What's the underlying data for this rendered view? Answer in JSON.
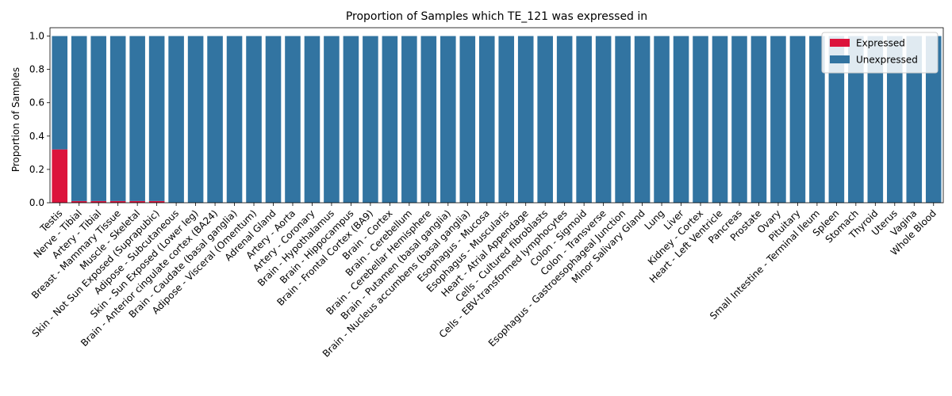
{
  "chart_data": {
    "type": "bar",
    "stacked": true,
    "title": "Proportion of Samples which TE_121 was expressed in",
    "xlabel": "",
    "ylabel": "Proportion of Samples",
    "ylim": [
      0,
      1.05
    ],
    "yticks": [
      "0.0",
      "0.2",
      "0.4",
      "0.6",
      "0.8",
      "1.0"
    ],
    "grid": false,
    "legend_position": "top-right",
    "categories": [
      "Testis",
      "Nerve - Tibial",
      "Artery - Tibial",
      "Breast - Mammary Tissue",
      "Muscle - Skeletal",
      "Skin - Not Sun Exposed (Suprapubic)",
      "Adipose - Subcutaneous",
      "Skin - Sun Exposed (Lower leg)",
      "Brain - Anterior cingulate cortex (BA24)",
      "Brain - Caudate (basal ganglia)",
      "Adipose - Visceral (Omentum)",
      "Adrenal Gland",
      "Artery - Aorta",
      "Artery - Coronary",
      "Brain - Hypothalamus",
      "Brain - Hippocampus",
      "Brain - Frontal Cortex (BA9)",
      "Brain - Cortex",
      "Brain - Cerebellum",
      "Brain - Cerebellar Hemisphere",
      "Brain - Putamen (basal ganglia)",
      "Brain - Nucleus accumbens (basal ganglia)",
      "Esophagus - Mucosa",
      "Esophagus - Muscularis",
      "Heart - Atrial Appendage",
      "Cells - Cultured fibroblasts",
      "Cells - EBV-transformed lymphocytes",
      "Colon - Sigmoid",
      "Colon - Transverse",
      "Esophagus - Gastroesophageal Junction",
      "Minor Salivary Gland",
      "Lung",
      "Liver",
      "Kidney - Cortex",
      "Heart - Left Ventricle",
      "Pancreas",
      "Prostate",
      "Ovary",
      "Pituitary",
      "Small Intestine - Terminal Ileum",
      "Spleen",
      "Stomach",
      "Thyroid",
      "Uterus",
      "Vagina",
      "Whole Blood"
    ],
    "series": [
      {
        "name": "Expressed",
        "color": "#dc143c",
        "values": [
          0.32,
          0.01,
          0.01,
          0.01,
          0.01,
          0.01,
          0,
          0,
          0,
          0,
          0,
          0,
          0,
          0,
          0,
          0,
          0,
          0,
          0,
          0,
          0,
          0,
          0,
          0,
          0,
          0,
          0,
          0,
          0,
          0,
          0,
          0,
          0,
          0,
          0,
          0,
          0,
          0,
          0,
          0,
          0,
          0,
          0,
          0,
          0,
          0
        ]
      },
      {
        "name": "Unexpressed",
        "color": "#3274a1",
        "values": [
          0.68,
          0.99,
          0.99,
          0.99,
          0.99,
          0.99,
          1,
          1,
          1,
          1,
          1,
          1,
          1,
          1,
          1,
          1,
          1,
          1,
          1,
          1,
          1,
          1,
          1,
          1,
          1,
          1,
          1,
          1,
          1,
          1,
          1,
          1,
          1,
          1,
          1,
          1,
          1,
          1,
          1,
          1,
          1,
          1,
          1,
          1,
          1,
          1
        ]
      }
    ]
  }
}
